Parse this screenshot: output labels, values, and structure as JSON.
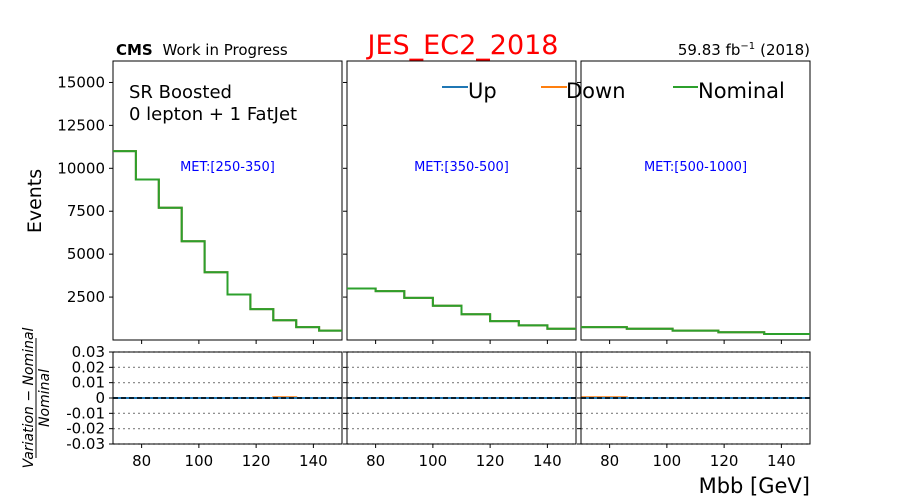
{
  "chart_data": {
    "type": "line",
    "title": "JES_EC2_2018",
    "title_color": "#ff0000",
    "experiment_label": "CMS",
    "experiment_sublabel": "Work in Progress",
    "lumi_label": "59.83 fb",
    "lumi_exponent": "−1",
    "lumi_year": "(2018)",
    "region_lines": [
      "SR Boosted",
      "0 lepton + 1 FatJet"
    ],
    "ylabel_top": "Events",
    "ylabel_bottom_numerator": "Variation − Nominal",
    "ylabel_bottom_denominator": "Nominal",
    "xlabel": "Mbb [GeV]",
    "x_ticks": [
      80,
      100,
      120,
      140
    ],
    "xlim": [
      70,
      150
    ],
    "ylim_top": [
      0,
      16250
    ],
    "y_ticks_top": [
      2500,
      5000,
      7500,
      10000,
      12500,
      15000
    ],
    "ylim_bottom": [
      -0.03,
      0.03
    ],
    "y_ticks_bottom": [
      0.03,
      0.02,
      0.01,
      0,
      -0.01,
      -0.02,
      -0.03
    ],
    "y_tick_labels_bottom": [
      "0.03",
      "0.02",
      "0.01",
      "0",
      "-0.01",
      "-0.02",
      "-0.03"
    ],
    "grid_bottom": "dotted",
    "legend": {
      "placement": "top",
      "entries": [
        {
          "name": "Up",
          "color": "#1f77b4"
        },
        {
          "name": "Down",
          "color": "#ff7f0e"
        },
        {
          "name": "Nominal",
          "color": "#2ca02c"
        }
      ]
    },
    "panels": [
      {
        "label": "MET:[250-350]",
        "bin_edges": [
          70,
          78,
          86,
          94,
          102,
          110,
          118,
          126,
          134,
          142,
          150
        ],
        "nominal": [
          11000,
          9350,
          7700,
          5750,
          3950,
          2650,
          1800,
          1150,
          750,
          550
        ],
        "up_ratio": [
          0,
          0,
          0,
          0,
          0,
          0,
          0,
          0,
          0,
          0
        ],
        "down_ratio": [
          0,
          0,
          0,
          0,
          0,
          0,
          0,
          0.0005,
          0,
          0
        ]
      },
      {
        "label": "MET:[350-500]",
        "bin_edges": [
          70,
          80,
          90,
          100,
          110,
          120,
          130,
          140,
          150
        ],
        "nominal": [
          3000,
          2850,
          2450,
          2000,
          1500,
          1100,
          850,
          650
        ],
        "up_ratio": [
          0,
          0,
          0,
          0,
          0,
          0,
          0,
          0
        ],
        "down_ratio": [
          0,
          0,
          0,
          0,
          0,
          0,
          0,
          0
        ]
      },
      {
        "label": "MET:[500-1000]",
        "bin_edges": [
          70,
          86,
          102,
          118,
          134,
          150
        ],
        "nominal": [
          750,
          650,
          550,
          450,
          350
        ],
        "up_ratio": [
          0,
          0,
          0,
          0,
          0
        ],
        "down_ratio": [
          0.0005,
          0,
          0,
          0,
          0
        ]
      }
    ],
    "colors": {
      "panel_label": "#0000ff",
      "ref_line": "#000000",
      "grid": "#808080",
      "axes": "#000000"
    }
  }
}
